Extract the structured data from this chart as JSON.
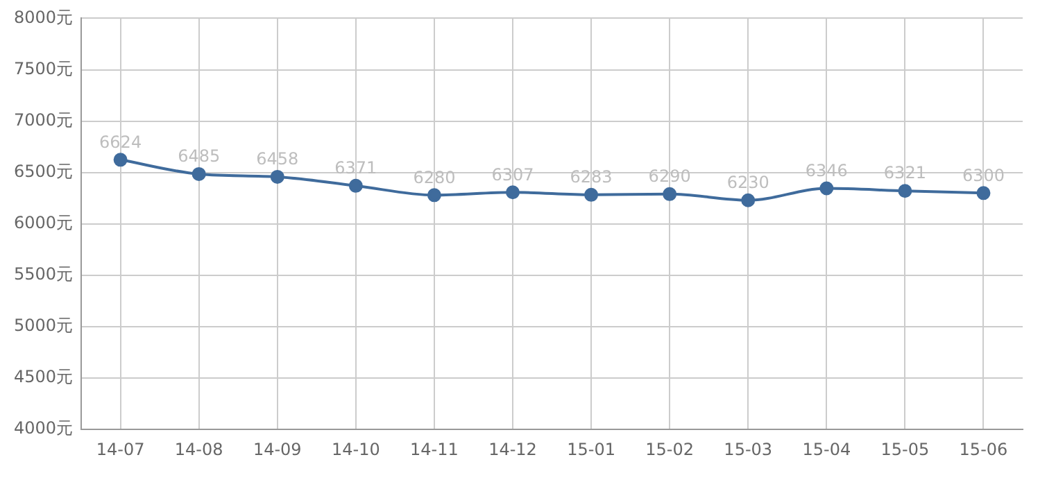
{
  "chart_data": {
    "type": "line",
    "categories": [
      "14-07",
      "14-08",
      "14-09",
      "14-10",
      "14-11",
      "14-12",
      "15-01",
      "15-02",
      "15-03",
      "15-04",
      "15-05",
      "15-06"
    ],
    "series": [
      {
        "color": "#3f6b9c",
        "values": [
          6624,
          6485,
          6458,
          6371,
          6280,
          6307,
          6283,
          6290,
          6230,
          6346,
          6321,
          6300
        ]
      }
    ],
    "ylim": [
      4000,
      8000
    ],
    "yticks": [
      {
        "value": 4000,
        "label": "4000元"
      },
      {
        "value": 4500,
        "label": "4500元"
      },
      {
        "value": 5000,
        "label": "5000元"
      },
      {
        "value": 5500,
        "label": "5500元"
      },
      {
        "value": 6000,
        "label": "6000元"
      },
      {
        "value": 6500,
        "label": "6500元"
      },
      {
        "value": 7000,
        "label": "7000元"
      },
      {
        "value": 7500,
        "label": "7500元"
      },
      {
        "value": 8000,
        "label": "8000元"
      }
    ],
    "grid": true,
    "marker": "circle",
    "line_style": "solid",
    "data_labels": true,
    "legend": false
  }
}
